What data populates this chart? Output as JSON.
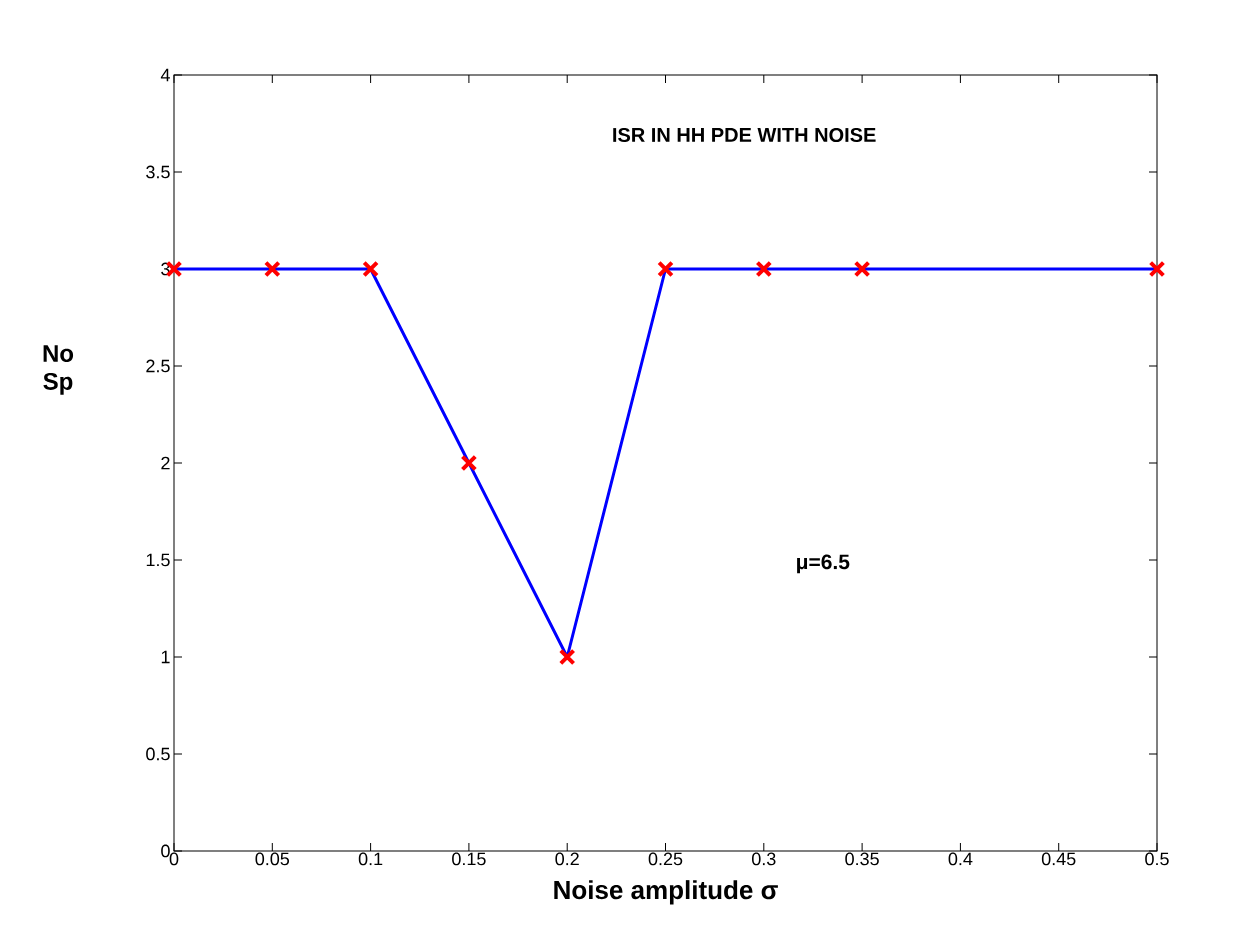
{
  "chart_data": {
    "type": "line",
    "title": "ISR IN HH PDE WITH NOISE",
    "xlabel": "Noise amplitude σ",
    "ylabel": "No Sp",
    "annotations": [
      "μ=6.5"
    ],
    "x": [
      0,
      0.05,
      0.1,
      0.15,
      0.2,
      0.25,
      0.3,
      0.35,
      0.5
    ],
    "series": [
      {
        "color": "#0000ff",
        "colors": [
          "#ff0000",
          "#ff0000",
          "#ff0000",
          "#ff0000",
          "#ff0000",
          "#ff0000",
          "#ff0000",
          "#ff0000",
          "#ff0000"
        ],
        "values": [
          3,
          3,
          3,
          2,
          1,
          3,
          3,
          3,
          3
        ]
      }
    ],
    "xlim": [
      0,
      0.5
    ],
    "ylim": [
      0,
      4
    ],
    "xticks": [
      0,
      0.05,
      0.1,
      0.15,
      0.2,
      0.25,
      0.3,
      0.35,
      0.4,
      0.45,
      0.5
    ],
    "yticks": [
      0,
      0.5,
      1,
      1.5,
      2,
      2.5,
      3,
      3.5,
      4
    ],
    "marker": "cross",
    "line_style": "solid"
  }
}
